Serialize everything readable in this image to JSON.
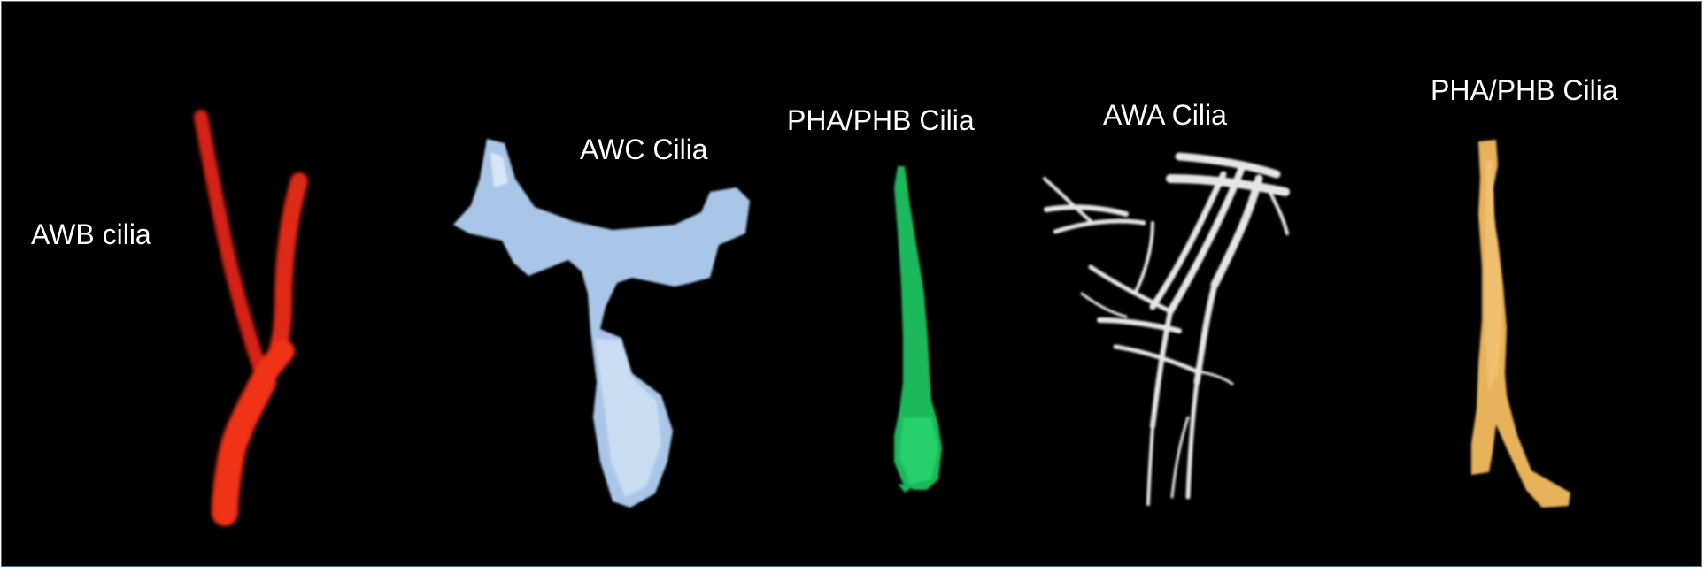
{
  "labels": {
    "awb": "AWB cilia",
    "awc": "AWC Cilia",
    "pha_phb_green": "PHA/PHB Cilia",
    "awa": "AWA Cilia",
    "pha_phb_yellow": "PHA/PHB Cilia"
  },
  "colors": {
    "background": "#000000",
    "border": "#4a6fa5",
    "awb": "#e52a12",
    "awc": "#a9c6e8",
    "pha_phb_green": "#1fb85c",
    "awa": "#e6e6e6",
    "pha_phb_yellow": "#e8b25a"
  }
}
